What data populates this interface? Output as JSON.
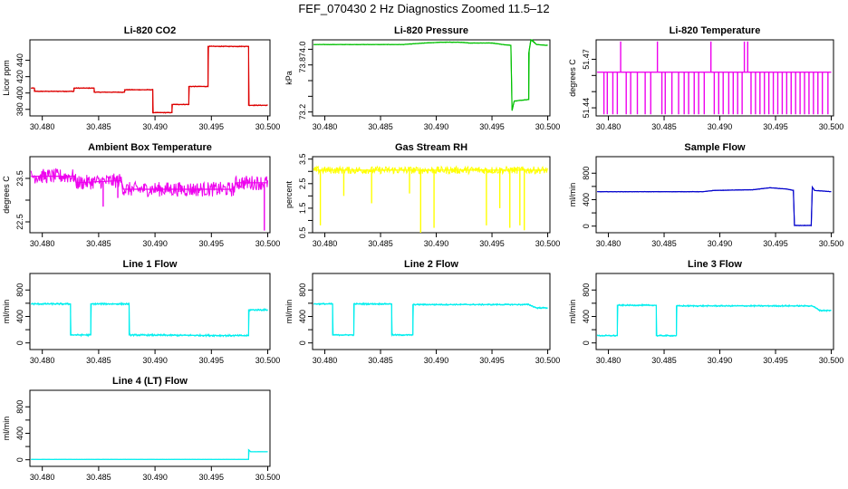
{
  "title": "FEF_070430  2 Hz Diagnostics Zoomed 11.5–12",
  "chart_data": [
    {
      "type": "line",
      "title": "Li-820 CO2",
      "ylabel": "Licor ppm",
      "color": "#dd0000",
      "xlim": [
        30.4789,
        30.5002
      ],
      "ylim": [
        372,
        465
      ],
      "xticks": [
        30.48,
        30.485,
        30.49,
        30.495,
        30.5
      ],
      "xtick_labels": [
        "30.480",
        "30.485",
        "30.490",
        "30.495",
        "30.500"
      ],
      "yticks": [
        380,
        400,
        420,
        440
      ],
      "ytick_labels": [
        "380",
        "400",
        "420",
        "440"
      ],
      "noise": 0.6,
      "spikes": [],
      "x": [
        30.479,
        30.4793,
        30.4793,
        30.4828,
        30.4828,
        30.4846,
        30.4846,
        30.4873,
        30.4873,
        30.4898,
        30.4898,
        30.4915,
        30.4915,
        30.493,
        30.493,
        30.4947,
        30.4947,
        30.4983,
        30.4983,
        30.5
      ],
      "y": [
        406,
        406,
        402,
        402,
        406,
        406,
        401,
        401,
        404,
        404,
        376,
        376,
        386,
        386,
        408,
        408,
        457,
        457,
        385,
        385
      ]
    },
    {
      "type": "line",
      "title": "Li-820 Pressure",
      "ylabel": "kPa",
      "color": "#00c000",
      "xlim": [
        30.4789,
        30.5002
      ],
      "ylim": [
        73.15,
        74.12
      ],
      "xticks": [
        30.48,
        30.485,
        30.49,
        30.495,
        30.5
      ],
      "xtick_labels": [
        "30.480",
        "30.485",
        "30.490",
        "30.495",
        "30.500"
      ],
      "yticks": [
        73.2,
        73.4,
        73.6,
        73.8,
        74.0
      ],
      "ytick_labels": [
        "73.2",
        "",
        "",
        "73.8",
        "74.0"
      ],
      "noise": 0.004,
      "spikes": [],
      "x": [
        30.479,
        30.487,
        30.489,
        30.4905,
        30.492,
        30.493,
        30.495,
        30.496,
        30.4967,
        30.4968,
        30.497,
        30.4983,
        30.4983,
        30.4985,
        30.499,
        30.5
      ],
      "y": [
        74.06,
        74.06,
        74.08,
        74.09,
        74.09,
        74.08,
        74.08,
        74.06,
        74.05,
        73.22,
        73.34,
        73.36,
        73.95,
        74.14,
        74.06,
        74.05
      ]
    },
    {
      "type": "line",
      "title": "Li-820 Temperature",
      "ylabel": "degrees C",
      "color": "#ee00ee",
      "xlim": [
        30.4789,
        30.5002
      ],
      "ylim": [
        51.435,
        51.482
      ],
      "xticks": [
        30.48,
        30.485,
        30.49,
        30.495,
        30.5
      ],
      "xtick_labels": [
        "30.480",
        "30.485",
        "30.490",
        "30.495",
        "30.500"
      ],
      "yticks": [
        51.44,
        51.45,
        51.46,
        51.47
      ],
      "ytick_labels": [
        "51.44",
        "",
        "",
        "51.47"
      ],
      "noise": 0,
      "spikes": [
        [
          30.4811,
          51.481
        ],
        [
          30.4844,
          51.481
        ],
        [
          30.4892,
          51.481
        ],
        [
          30.4922,
          51.481
        ],
        [
          30.4925,
          51.481
        ],
        [
          30.4796,
          51.436
        ],
        [
          30.4799,
          51.436
        ],
        [
          30.4804,
          51.436
        ],
        [
          30.4808,
          51.436
        ],
        [
          30.4816,
          51.436
        ],
        [
          30.482,
          51.436
        ],
        [
          30.4826,
          51.436
        ],
        [
          30.4833,
          51.436
        ],
        [
          30.4838,
          51.436
        ],
        [
          30.4848,
          51.436
        ],
        [
          30.4851,
          51.436
        ],
        [
          30.4857,
          51.436
        ],
        [
          30.4863,
          51.436
        ],
        [
          30.4868,
          51.436
        ],
        [
          30.4872,
          51.436
        ],
        [
          30.4877,
          51.436
        ],
        [
          30.4881,
          51.436
        ],
        [
          30.4886,
          51.436
        ],
        [
          30.4895,
          51.436
        ],
        [
          30.4899,
          51.436
        ],
        [
          30.4903,
          51.436
        ],
        [
          30.4908,
          51.436
        ],
        [
          30.4912,
          51.436
        ],
        [
          30.4916,
          51.436
        ],
        [
          30.492,
          51.436
        ],
        [
          30.4928,
          51.436
        ],
        [
          30.4932,
          51.436
        ],
        [
          30.4936,
          51.436
        ],
        [
          30.494,
          51.436
        ],
        [
          30.4944,
          51.436
        ],
        [
          30.4948,
          51.436
        ],
        [
          30.4952,
          51.436
        ],
        [
          30.4956,
          51.436
        ],
        [
          30.496,
          51.436
        ],
        [
          30.4964,
          51.436
        ],
        [
          30.4968,
          51.436
        ],
        [
          30.4972,
          51.436
        ],
        [
          30.4976,
          51.436
        ],
        [
          30.498,
          51.436
        ],
        [
          30.4984,
          51.436
        ],
        [
          30.4988,
          51.436
        ],
        [
          30.4992,
          51.436
        ],
        [
          30.4997,
          51.436
        ]
      ],
      "x": [
        30.479,
        30.5
      ],
      "y": [
        51.462,
        51.462
      ]
    },
    {
      "type": "line",
      "title": "Ambient Box Temperature",
      "ylabel": "degrees C",
      "color": "#ee00ee",
      "xlim": [
        30.4789,
        30.5002
      ],
      "ylim": [
        22.25,
        24.0
      ],
      "xticks": [
        30.48,
        30.485,
        30.49,
        30.495,
        30.5
      ],
      "xtick_labels": [
        "30.480",
        "30.485",
        "30.490",
        "30.495",
        "30.500"
      ],
      "yticks": [
        22.5,
        23.0,
        23.5
      ],
      "ytick_labels": [
        "22.5",
        "",
        "23.5"
      ],
      "noise": 0.17,
      "spikes": [
        [
          30.4854,
          22.85
        ],
        [
          30.4867,
          23.05
        ],
        [
          30.4997,
          22.3
        ]
      ],
      "x": [
        30.479,
        30.4828,
        30.483,
        30.487,
        30.4872,
        30.497,
        30.4972,
        30.5
      ],
      "y": [
        23.55,
        23.55,
        23.4,
        23.45,
        23.25,
        23.25,
        23.4,
        23.4
      ]
    },
    {
      "type": "line",
      "title": "Gas Stream RH",
      "ylabel": "percent",
      "color": "#ffff00",
      "xlim": [
        30.4789,
        30.5002
      ],
      "ylim": [
        0.5,
        3.6
      ],
      "xticks": [
        30.48,
        30.485,
        30.49,
        30.495,
        30.5
      ],
      "xtick_labels": [
        "30.480",
        "30.485",
        "30.490",
        "30.495",
        "30.500"
      ],
      "yticks": [
        0.5,
        1.0,
        1.5,
        2.0,
        2.5,
        3.0,
        3.5
      ],
      "ytick_labels": [
        "0.5",
        "",
        "1.5",
        "",
        "2.5",
        "",
        "3.5"
      ],
      "noise": 0.15,
      "spikes": [
        [
          30.4796,
          0.8
        ],
        [
          30.4817,
          2.0
        ],
        [
          30.4842,
          1.7
        ],
        [
          30.4876,
          2.1
        ],
        [
          30.4886,
          0.5
        ],
        [
          30.4898,
          0.7
        ],
        [
          30.4945,
          0.8
        ],
        [
          30.4957,
          1.5
        ],
        [
          30.4966,
          0.7
        ],
        [
          30.4975,
          0.8
        ],
        [
          30.4979,
          0.6
        ]
      ],
      "x": [
        30.479,
        30.5
      ],
      "y": [
        3.05,
        3.05
      ]
    },
    {
      "type": "line",
      "title": "Sample Flow",
      "ylabel": "ml/min",
      "color": "#0000cc",
      "xlim": [
        30.4789,
        30.5002
      ],
      "ylim": [
        -100,
        1050
      ],
      "xticks": [
        30.48,
        30.485,
        30.49,
        30.495,
        30.5
      ],
      "xtick_labels": [
        "30.480",
        "30.485",
        "30.490",
        "30.495",
        "30.500"
      ],
      "yticks": [
        0,
        200,
        400,
        600,
        800
      ],
      "ytick_labels": [
        "0",
        "",
        "400",
        "",
        "800"
      ],
      "noise": 4,
      "spikes": [],
      "x": [
        30.479,
        30.4885,
        30.4895,
        30.493,
        30.4945,
        30.496,
        30.4966,
        30.4967,
        30.4982,
        30.4983,
        30.4985,
        30.5
      ],
      "y": [
        520,
        520,
        540,
        550,
        580,
        560,
        540,
        10,
        10,
        590,
        540,
        520
      ]
    },
    {
      "type": "line",
      "title": "Line 1 Flow",
      "ylabel": "ml/min",
      "color": "#00eeee",
      "xlim": [
        30.4789,
        30.5002
      ],
      "ylim": [
        -100,
        1050
      ],
      "xticks": [
        30.48,
        30.485,
        30.49,
        30.495,
        30.5
      ],
      "xtick_labels": [
        "30.480",
        "30.485",
        "30.490",
        "30.495",
        "30.500"
      ],
      "yticks": [
        0,
        200,
        400,
        600,
        800
      ],
      "ytick_labels": [
        "0",
        "",
        "400",
        "",
        "800"
      ],
      "noise": 15,
      "spikes": [],
      "x": [
        30.479,
        30.4825,
        30.4825,
        30.4843,
        30.4843,
        30.4877,
        30.4877,
        30.4983,
        30.4983,
        30.5
      ],
      "y": [
        590,
        590,
        120,
        120,
        590,
        590,
        120,
        110,
        500,
        500
      ]
    },
    {
      "type": "line",
      "title": "Line 2 Flow",
      "ylabel": "ml/min",
      "color": "#00eeee",
      "xlim": [
        30.4789,
        30.5002
      ],
      "ylim": [
        -100,
        1050
      ],
      "xticks": [
        30.48,
        30.485,
        30.49,
        30.495,
        30.5
      ],
      "xtick_labels": [
        "30.480",
        "30.485",
        "30.490",
        "30.495",
        "30.500"
      ],
      "yticks": [
        0,
        200,
        400,
        600,
        800
      ],
      "ytick_labels": [
        "0",
        "",
        "400",
        "",
        "800"
      ],
      "noise": 12,
      "spikes": [],
      "x": [
        30.479,
        30.4807,
        30.4807,
        30.4826,
        30.4826,
        30.486,
        30.486,
        30.4879,
        30.4879,
        30.4983,
        30.499,
        30.5
      ],
      "y": [
        590,
        590,
        120,
        120,
        590,
        590,
        120,
        120,
        580,
        580,
        530,
        530
      ]
    },
    {
      "type": "line",
      "title": "Line 3 Flow",
      "ylabel": "ml/min",
      "color": "#00eeee",
      "xlim": [
        30.4789,
        30.5002
      ],
      "ylim": [
        -100,
        1050
      ],
      "xticks": [
        30.48,
        30.485,
        30.49,
        30.495,
        30.5
      ],
      "xtick_labels": [
        "30.480",
        "30.485",
        "30.490",
        "30.495",
        "30.500"
      ],
      "yticks": [
        0,
        200,
        400,
        600,
        800
      ],
      "ytick_labels": [
        "0",
        "",
        "400",
        "",
        "800"
      ],
      "noise": 12,
      "spikes": [],
      "x": [
        30.479,
        30.4808,
        30.4808,
        30.4843,
        30.4843,
        30.4861,
        30.4861,
        30.4983,
        30.499,
        30.5
      ],
      "y": [
        110,
        110,
        570,
        570,
        110,
        110,
        560,
        560,
        490,
        490
      ]
    },
    {
      "type": "line",
      "title": "Line 4 (LT) Flow",
      "ylabel": "ml/min",
      "color": "#00eeee",
      "xlim": [
        30.4789,
        30.5002
      ],
      "ylim": [
        -100,
        1050
      ],
      "xticks": [
        30.48,
        30.485,
        30.49,
        30.495,
        30.5
      ],
      "xtick_labels": [
        "30.480",
        "30.485",
        "30.490",
        "30.495",
        "30.500"
      ],
      "yticks": [
        0,
        200,
        400,
        600,
        800
      ],
      "ytick_labels": [
        "0",
        "",
        "400",
        "",
        "800"
      ],
      "noise": 2,
      "spikes": [],
      "x": [
        30.479,
        30.4983,
        30.4983,
        30.4985,
        30.5
      ],
      "y": [
        5,
        5,
        150,
        120,
        120
      ]
    }
  ]
}
